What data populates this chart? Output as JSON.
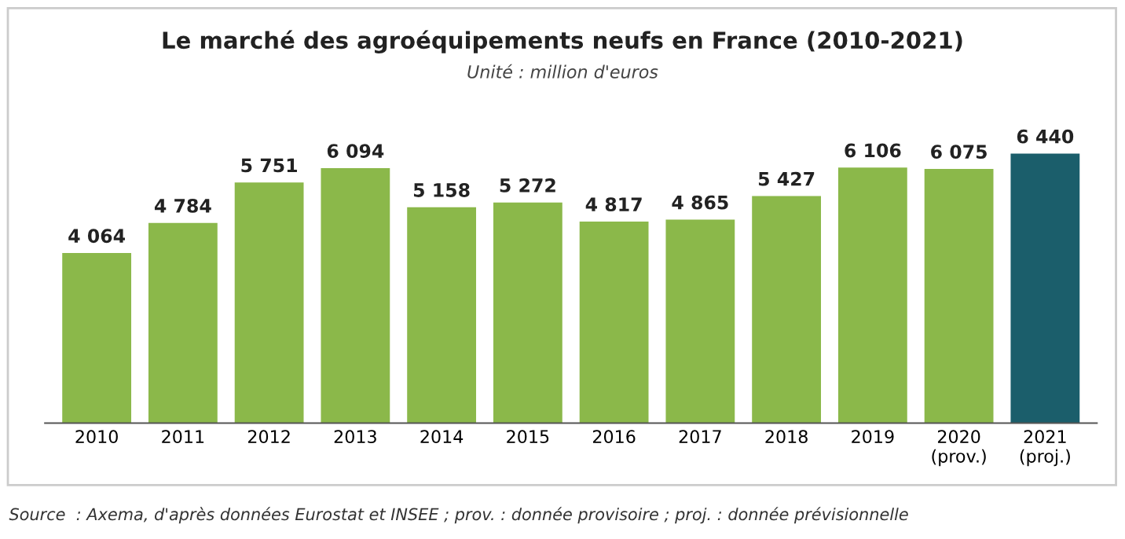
{
  "chart_data": {
    "type": "bar",
    "title": "Le marché des agroéquipements neufs en France (2010-2021)",
    "subtitle": "Unité : million d'euros",
    "categories": [
      "2010",
      "2011",
      "2012",
      "2013",
      "2014",
      "2015",
      "2016",
      "2017",
      "2018",
      "2019",
      "2020\n(prov.)",
      "2021\n(proj.)"
    ],
    "values": [
      4064,
      4784,
      5751,
      6094,
      5158,
      5272,
      4817,
      4865,
      5427,
      6106,
      6075,
      6440
    ],
    "colors": [
      "#8bb84a",
      "#8bb84a",
      "#8bb84a",
      "#8bb84a",
      "#8bb84a",
      "#8bb84a",
      "#8bb84a",
      "#8bb84a",
      "#8bb84a",
      "#8bb84a",
      "#8bb84a",
      "#1b5e6b"
    ],
    "value_labels": [
      "4 064",
      "4 784",
      "5 751",
      "6 094",
      "5 158",
      "5 272",
      "4 817",
      "4 865",
      "5 427",
      "6 106",
      "6 075",
      "6 440"
    ],
    "annotations": [
      "Source  : Axema, d'après données Eurostat et INSEE ; prov. : donnée provisoire ; proj. : donnée prévisionnelle"
    ]
  }
}
